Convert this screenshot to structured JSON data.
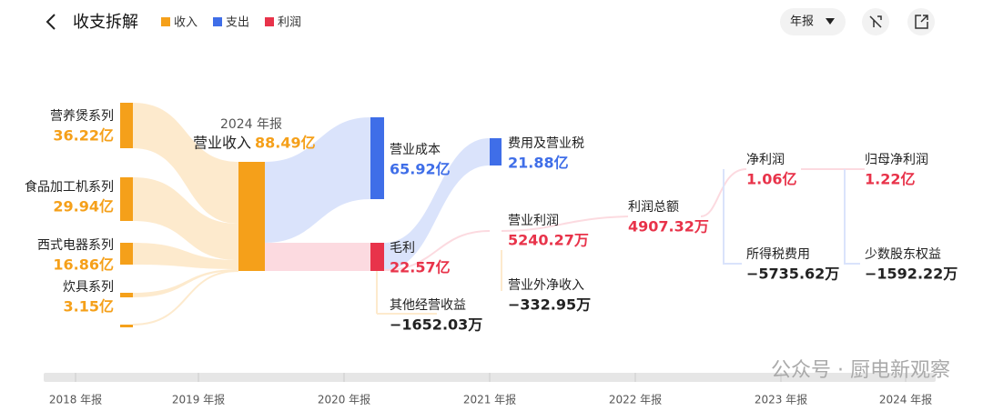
{
  "header": {
    "title": "收支拆解",
    "legend": [
      "收入",
      "支出",
      "利润"
    ],
    "period": "年报"
  },
  "center": {
    "year": "2024 年报",
    "label": "营业收入",
    "value": "88.49亿"
  },
  "nodes": [
    {
      "label": "营养煲系列",
      "value": "36.22亿"
    },
    {
      "label": "食品加工机系列",
      "value": "29.94亿"
    },
    {
      "label": "西式电器系列",
      "value": "16.86亿"
    },
    {
      "label": "炊具系列",
      "value": "3.15亿"
    },
    {
      "label": "营业成本",
      "value": "65.92亿"
    },
    {
      "label": "毛利",
      "value": "22.57亿"
    },
    {
      "label": "其他经营收益",
      "value": "−1652.03万"
    },
    {
      "label": "费用及营业税",
      "value": "21.88亿"
    },
    {
      "label": "营业利润",
      "value": "5240.27万"
    },
    {
      "label": "营业外净收入",
      "value": "−332.95万"
    },
    {
      "label": "利润总额",
      "value": "4907.32万"
    },
    {
      "label": "净利润",
      "value": "1.06亿"
    },
    {
      "label": "所得税费用",
      "value": "−5735.62万"
    },
    {
      "label": "归母净利润",
      "value": "1.22亿"
    },
    {
      "label": "少数股东权益",
      "value": "−1592.22万"
    }
  ],
  "timeline": [
    "2018 年报",
    "2019 年报",
    "2020 年报",
    "2021 年报",
    "2022 年报",
    "2023 年报",
    "2024 年报"
  ],
  "watermark": "公众号 · 厨电新观察"
}
